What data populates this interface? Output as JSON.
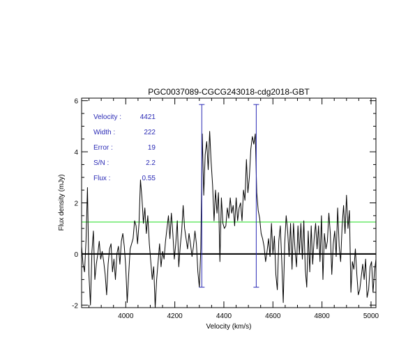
{
  "chart_data": {
    "type": "line",
    "title": "PGC0037089-CGCG243018-cdg2018-GBT",
    "xlabel": "Velocity (km/s)",
    "ylabel": "Flux density (mJy)",
    "xlim": [
      3820,
      5020
    ],
    "ylim": [
      -2.1,
      6.1
    ],
    "xticks": [
      4000,
      4200,
      4400,
      4600,
      4800,
      5000
    ],
    "yticks": [
      -2,
      0,
      2,
      4,
      6
    ],
    "x_minor_step": 50,
    "y_minor_step": 0.5,
    "grid": false,
    "zero_line": 0,
    "threshold_line": {
      "y": 1.25,
      "color": "#22dd22"
    },
    "velocity_markers": {
      "x": [
        4310,
        4532
      ],
      "y_range": [
        -1.3,
        5.85
      ],
      "color": "#2a2ab5"
    },
    "series": [
      {
        "color": "#000000",
        "x": [
          3820,
          3826,
          3832,
          3838,
          3844,
          3850,
          3856,
          3862,
          3868,
          3874,
          3880,
          3886,
          3892,
          3898,
          3904,
          3910,
          3916,
          3922,
          3928,
          3934,
          3940,
          3946,
          3952,
          3958,
          3964,
          3970,
          3976,
          3982,
          3988,
          3994,
          4000,
          4006,
          4012,
          4018,
          4024,
          4030,
          4036,
          4042,
          4048,
          4054,
          4060,
          4066,
          4072,
          4078,
          4084,
          4090,
          4096,
          4102,
          4108,
          4114,
          4120,
          4126,
          4132,
          4138,
          4144,
          4150,
          4156,
          4162,
          4168,
          4174,
          4180,
          4186,
          4192,
          4198,
          4204,
          4210,
          4216,
          4222,
          4228,
          4234,
          4240,
          4246,
          4252,
          4258,
          4264,
          4270,
          4276,
          4282,
          4288,
          4294,
          4300,
          4306,
          4312,
          4318,
          4324,
          4330,
          4336,
          4342,
          4348,
          4354,
          4360,
          4366,
          4372,
          4378,
          4384,
          4390,
          4396,
          4402,
          4408,
          4414,
          4420,
          4426,
          4432,
          4438,
          4444,
          4450,
          4456,
          4462,
          4468,
          4474,
          4480,
          4486,
          4492,
          4498,
          4504,
          4510,
          4516,
          4522,
          4528,
          4534,
          4540,
          4546,
          4552,
          4558,
          4564,
          4570,
          4576,
          4582,
          4588,
          4594,
          4600,
          4606,
          4612,
          4618,
          4624,
          4630,
          4636,
          4642,
          4648,
          4654,
          4660,
          4666,
          4672,
          4678,
          4684,
          4690,
          4696,
          4702,
          4708,
          4714,
          4720,
          4726,
          4732,
          4738,
          4744,
          4750,
          4756,
          4762,
          4768,
          4774,
          4780,
          4786,
          4792,
          4798,
          4804,
          4810,
          4816,
          4822,
          4828,
          4834,
          4840,
          4846,
          4852,
          4858,
          4864,
          4870,
          4876,
          4882,
          4888,
          4894,
          4900,
          4906,
          4912,
          4918,
          4924,
          4930,
          4936,
          4942,
          4948,
          4954,
          4960,
          4966,
          4972,
          4978,
          4984,
          4990,
          4996,
          5002,
          5008,
          5014,
          5020
        ],
        "y": [
          0.3,
          -0.4,
          -0.7,
          0.5,
          2.6,
          -0.8,
          -2.0,
          0.1,
          0.9,
          -1.0,
          -0.4,
          0.0,
          0.5,
          -0.2,
          0.1,
          -0.3,
          -0.8,
          -1.6,
          -0.4,
          0.2,
          0.4,
          -0.7,
          -0.2,
          -1.0,
          0.0,
          0.3,
          -0.4,
          0.5,
          0.8,
          0.3,
          -0.5,
          -1.9,
          -0.8,
          0.2,
          0.4,
          0.6,
          1.3,
          1.1,
          0.4,
          1.2,
          2.9,
          2.2,
          1.2,
          1.8,
          0.8,
          1.5,
          0.4,
          -0.3,
          -1.0,
          -0.5,
          -2.1,
          -1.0,
          -0.3,
          0.4,
          -0.5,
          0.1,
          -0.2,
          0.5,
          1.0,
          1.5,
          0.6,
          1.6,
          0.8,
          -0.2,
          0.4,
          1.3,
          -0.5,
          0.3,
          0.9,
          1.9,
          1.0,
          0.6,
          0.2,
          0.8,
          0.4,
          -0.1,
          0.3,
          0.9,
          0.4,
          -0.7,
          -1.3,
          0.2,
          4.7,
          2.3,
          3.9,
          4.4,
          3.3,
          4.8,
          3.6,
          2.7,
          1.3,
          2.5,
          1.6,
          2.4,
          -0.3,
          2.2,
          1.2,
          1.0,
          1.1,
          1.8,
          1.4,
          2.2,
          1.6,
          1.9,
          1.1,
          2.2,
          1.3,
          1.8,
          2.0,
          1.3,
          2.5,
          2.1,
          3.7,
          2.4,
          3.0,
          4.1,
          4.6,
          4.3,
          4.7,
          2.4,
          1.7,
          1.4,
          0.8,
          0.6,
          0.3,
          -0.3,
          0.1,
          0.6,
          -0.1,
          1.2,
          0.0,
          0.7,
          -0.8,
          -1.4,
          0.5,
          1.1,
          -0.3,
          -1.9,
          0.4,
          1.5,
          0.9,
          -0.1,
          1.2,
          -0.6,
          1.2,
          0.2,
          -0.5,
          1.1,
          0.0,
          1.2,
          -0.2,
          1.3,
          -0.6,
          -1.3,
          0.9,
          -0.7,
          1.1,
          -0.4,
          0.6,
          1.2,
          0.2,
          1.1,
          -0.3,
          1.5,
          -1.0,
          0.8,
          0.2,
          0.5,
          1.6,
          0.8,
          -0.8,
          0.4,
          0.9,
          -0.1,
          1.8,
          0.3,
          -0.3,
          1.1,
          1.9,
          0.8,
          2.3,
          1.0,
          1.7,
          -1.5,
          -0.3,
          -0.6,
          0.2,
          -0.8,
          -1.6,
          -1.4,
          -0.9,
          -0.4,
          -1.0,
          -0.2,
          -1.7,
          -1.4,
          -0.5,
          -0.3,
          -1.5,
          -0.7,
          -0.2
        ]
      }
    ],
    "annotations": {
      "color": "#2a2ab5",
      "rows": [
        {
          "label": "Velocity :",
          "value": "4421"
        },
        {
          "label": "Width :",
          "value": "222"
        },
        {
          "label": "Error :",
          "value": "19"
        },
        {
          "label": "S/N :",
          "value": "2.2"
        },
        {
          "label": "Flux :",
          "value": "0.55"
        }
      ]
    }
  }
}
